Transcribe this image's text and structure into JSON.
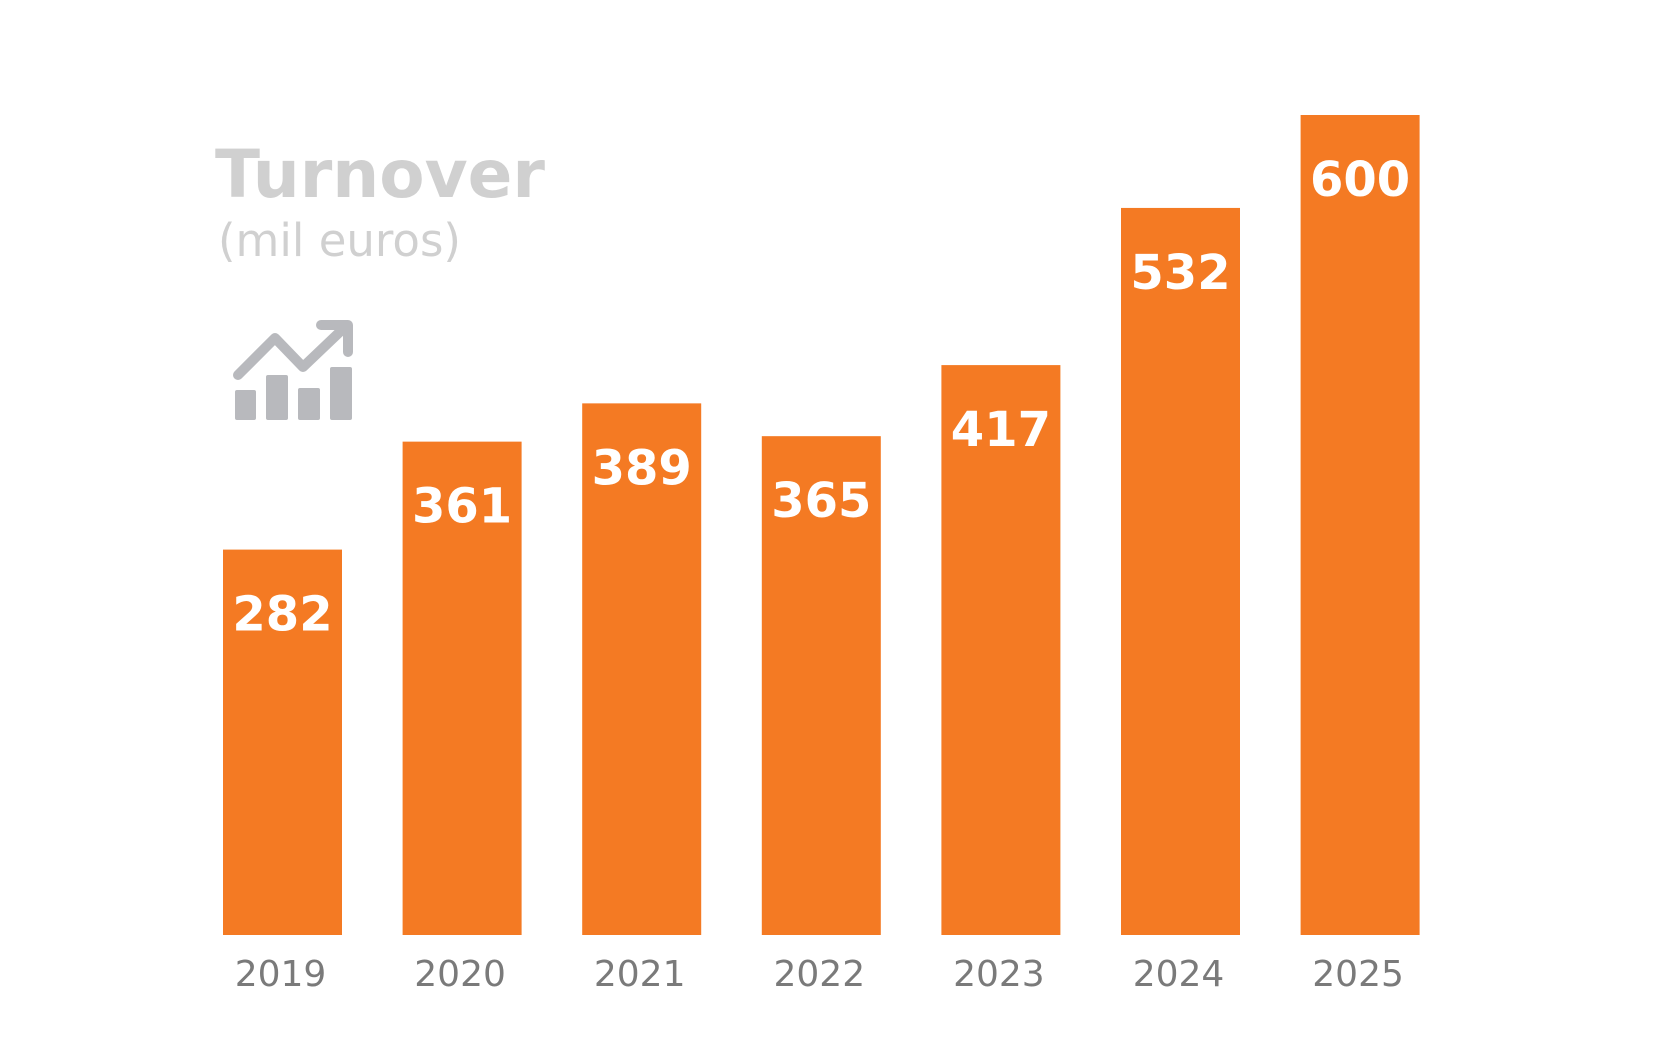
{
  "colors": {
    "bar": "#f47a23",
    "title": "#d0d0d0",
    "icon": "#b8b9bd",
    "tick": "#7a7a7a",
    "label": "#ffffff"
  },
  "icon": "trend-up-chart-icon",
  "chart_data": {
    "type": "bar",
    "title": "Turnover",
    "subtitle": "(mil euros)",
    "xlabel": "",
    "ylabel": "",
    "categories": [
      "2019",
      "2020",
      "2021",
      "2022",
      "2023",
      "2024",
      "2025"
    ],
    "values": [
      282,
      361,
      389,
      365,
      417,
      532,
      600
    ],
    "value_labels": [
      "282",
      "361",
      "389",
      "365",
      "417",
      "532",
      "600"
    ],
    "ylim": [
      0,
      600
    ],
    "grid": false,
    "legend": "none",
    "data_labels": "inside-top"
  }
}
